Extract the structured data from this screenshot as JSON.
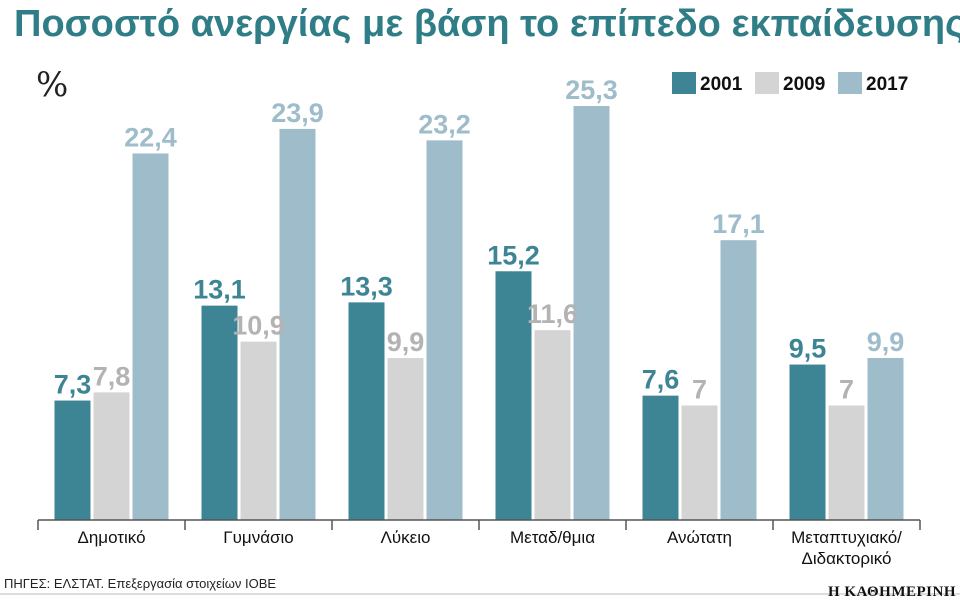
{
  "colors": {
    "title": "#2f7d86",
    "series": [
      "#3d8595",
      "#d4d4d4",
      "#9fbcca"
    ],
    "labels": [
      "#3d8595",
      "#b3b3b3",
      "#9fbcca"
    ]
  },
  "chart_data": {
    "type": "bar",
    "title": "Ποσοστό ανεργίας με βάση το επίπεδο εκπαίδευσης",
    "unit_label": "%",
    "categories": [
      [
        "Δημοτικό"
      ],
      [
        "Γυμνάσιο"
      ],
      [
        "Λύκειο"
      ],
      [
        "Μεταδ/θμια"
      ],
      [
        "Ανώτατη"
      ],
      [
        "Μεταπτυχιακό/",
        "Διδακτορικό"
      ]
    ],
    "series": [
      {
        "name": "2001",
        "values": [
          7.3,
          13.1,
          13.3,
          15.2,
          7.6,
          9.5
        ],
        "labels": [
          "7,3",
          "13,1",
          "13,3",
          "15,2",
          "7,6",
          "9,5"
        ]
      },
      {
        "name": "2009",
        "values": [
          7.8,
          10.9,
          9.9,
          11.6,
          7,
          7
        ],
        "labels": [
          "7,8",
          "10,9",
          "9,9",
          "11,6",
          "7",
          "7"
        ]
      },
      {
        "name": "2017",
        "values": [
          22.4,
          23.9,
          23.2,
          25.3,
          17.1,
          9.9
        ],
        "labels": [
          "22,4",
          "23,9",
          "23,2",
          "25,3",
          "17,1",
          "9,9"
        ]
      }
    ],
    "ylim": [
      0,
      25.3
    ],
    "grid": false,
    "legend_position": "top-right",
    "source": "ΠΗΓΕΣ: ΕΛΣΤΑΤ. Επεξεργασία στοιχείων ΙΟΒΕ",
    "brand": "Η ΚΑΘΗΜΕΡΙΝΗ"
  }
}
